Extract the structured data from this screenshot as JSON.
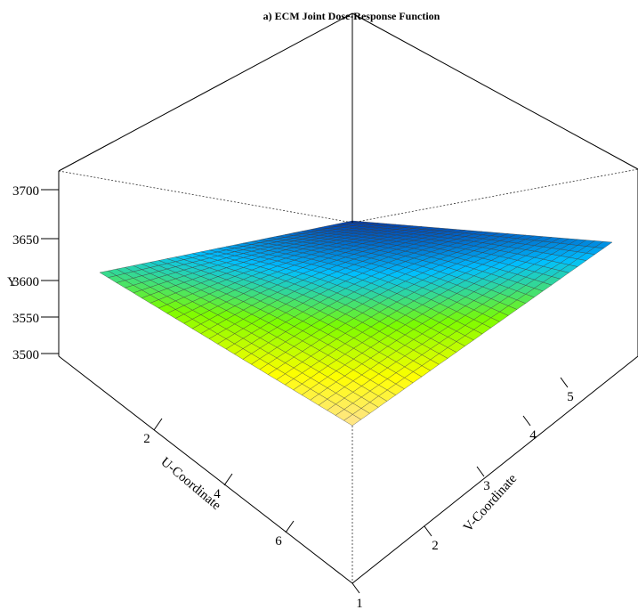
{
  "chart_data": {
    "type": "surface",
    "title": "a) ECM Joint Dose-Response Function",
    "xlabel": "U-Coordinate",
    "ylabel": "V-Coordinate",
    "zlabel": "Y",
    "x_ticks": [
      "2",
      "4",
      "6"
    ],
    "y_ticks": [
      "1",
      "2",
      "3",
      "4",
      "5"
    ],
    "z_ticks": [
      "3500",
      "3550",
      "3600",
      "3650",
      "3700"
    ],
    "xlim": [
      1,
      7
    ],
    "ylim": [
      1,
      5.5
    ],
    "zlim": [
      3480,
      3720
    ],
    "corners": [
      {
        "u": 1,
        "v": 1,
        "y": 3610
      },
      {
        "u": 1,
        "v": 5.5,
        "y": 3650
      },
      {
        "u": 7,
        "v": 1,
        "y": 3525
      },
      {
        "u": 7,
        "v": 5.5,
        "y": 3635
      }
    ],
    "colormap": [
      "#00008b",
      "#00bfff",
      "#7cfc00",
      "#ffff00",
      "#ffdead"
    ],
    "grid_lines": 30
  }
}
